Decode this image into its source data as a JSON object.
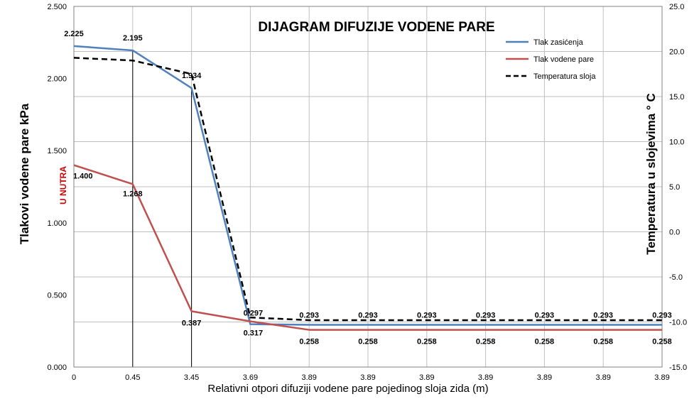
{
  "chart_data": {
    "type": "line",
    "title": "DIJAGRAM DIFUZIJE VODENE PARE",
    "xlabel": "Relativni otpori difuziji vodene pare pojedinog sloja zida (m)",
    "ylabel": "Tlakovi vodene pare kPa",
    "y2label": "Temperatura u slojevima ° C",
    "annotation": "U NUTRA",
    "categories": [
      "0",
      "0.45",
      "3.45",
      "3.69",
      "3.89",
      "3.89",
      "3.89",
      "3.89",
      "3.89",
      "3.89",
      "3.89"
    ],
    "ylim": [
      0,
      2.5
    ],
    "y2lim": [
      -15,
      25
    ],
    "yticks": [
      "0.000",
      "0.500",
      "1.000",
      "1.500",
      "2.000",
      "2.500"
    ],
    "y2ticks": [
      "-15.0",
      "-10.0",
      "-5.0",
      "0.0",
      "5.0",
      "10.0",
      "15.0",
      "20.0",
      "25.0"
    ],
    "grid": true,
    "legend_position": "top-right",
    "series": [
      {
        "name": "Tlak zasićenja",
        "axis": "left",
        "color": "#4f81bd",
        "values": [
          2.225,
          2.195,
          1.934,
          0.297,
          0.293,
          0.293,
          0.293,
          0.293,
          0.293,
          0.293,
          0.293
        ],
        "labels": [
          "2.225",
          "2.195",
          "1.934",
          "0.297",
          "0.293",
          "0.293",
          "0.293",
          "0.293",
          "0.293",
          "0.293",
          "0.293"
        ]
      },
      {
        "name": "Tlak vodene pare",
        "axis": "left",
        "color": "#c0504d",
        "values": [
          1.4,
          1.268,
          0.387,
          0.317,
          0.258,
          0.258,
          0.258,
          0.258,
          0.258,
          0.258,
          0.258
        ],
        "labels": [
          "1.400",
          "1.268",
          "0.387",
          "0.317",
          "0.258",
          "0.258",
          "0.258",
          "0.258",
          "0.258",
          "0.258",
          "0.258"
        ]
      },
      {
        "name": "Temperatura sloja",
        "axis": "right",
        "color": "#000000",
        "dashed": true,
        "values": [
          19.3,
          19.0,
          17.5,
          -9.5,
          -9.8,
          -9.8,
          -9.8,
          -9.8,
          -9.8,
          -9.8,
          -9.8
        ]
      }
    ]
  }
}
